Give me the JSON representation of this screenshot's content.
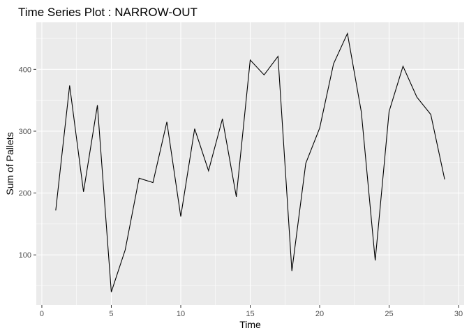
{
  "chart_data": {
    "type": "line",
    "title": "Time Series Plot : NARROW-OUT",
    "xlabel": "Time",
    "ylabel": "Sum of Pallets",
    "xlim": [
      -0.4,
      30.4
    ],
    "ylim": [
      19,
      476
    ],
    "x_ticks": [
      0,
      5,
      10,
      15,
      20,
      25,
      30
    ],
    "y_ticks": [
      100,
      200,
      300,
      400
    ],
    "grid": true,
    "legend": "none",
    "colors": {
      "panel": "#ebebeb",
      "grid": "#ffffff",
      "line": "#000000",
      "tick": "#333333"
    },
    "series": [
      {
        "x": [
          1,
          2,
          3,
          4,
          5,
          6,
          7,
          8,
          9,
          10,
          11,
          12,
          13,
          14,
          15,
          16,
          17,
          18,
          19,
          20,
          21,
          22,
          23,
          24,
          25,
          26,
          27,
          28,
          29
        ],
        "values": [
          172,
          374,
          202,
          342,
          40,
          108,
          224,
          217,
          315,
          162,
          304,
          236,
          320,
          194,
          415,
          391,
          421,
          74,
          248,
          305,
          409,
          458,
          331,
          91,
          332,
          405,
          355,
          327,
          222
        ]
      }
    ]
  }
}
